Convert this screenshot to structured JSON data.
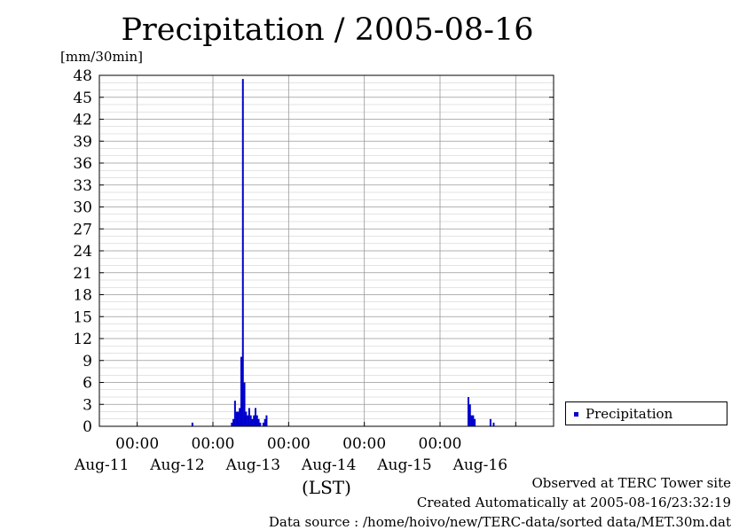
{
  "chart_data": {
    "type": "bar",
    "title": "Precipitation / 2005-08-16",
    "ylabel": "[mm/30min]",
    "xlabel": "(LST)",
    "ylim": [
      0,
      48
    ],
    "yticks": [
      "0",
      "3",
      "6",
      "9",
      "12",
      "15",
      "18",
      "21",
      "24",
      "27",
      "30",
      "33",
      "36",
      "39",
      "42",
      "45",
      "48"
    ],
    "grid": true,
    "xlim_hours": [
      0,
      144
    ],
    "xticks": [
      {
        "time": "00:00",
        "date": "Aug-11"
      },
      {
        "time": "00:00",
        "date": "Aug-12"
      },
      {
        "time": "00:00",
        "date": "Aug-13"
      },
      {
        "time": "00:00",
        "date": "Aug-14"
      },
      {
        "time": "00:00",
        "date": "Aug-15"
      },
      {
        "time": "",
        "date": "Aug-16"
      }
    ],
    "legend": {
      "position": "right",
      "label": "Precipitation"
    },
    "series": [
      {
        "name": "Precipitation",
        "color": "#0000cc",
        "points": [
          {
            "t": 29.5,
            "v": 0.5
          },
          {
            "t": 42.0,
            "v": 0.5
          },
          {
            "t": 42.5,
            "v": 1.0
          },
          {
            "t": 43.0,
            "v": 3.5
          },
          {
            "t": 43.5,
            "v": 2.0
          },
          {
            "t": 44.0,
            "v": 2.0
          },
          {
            "t": 44.5,
            "v": 2.5
          },
          {
            "t": 45.0,
            "v": 9.5
          },
          {
            "t": 45.5,
            "v": 47.5
          },
          {
            "t": 46.0,
            "v": 6.0
          },
          {
            "t": 46.5,
            "v": 2.0
          },
          {
            "t": 47.0,
            "v": 1.5
          },
          {
            "t": 47.5,
            "v": 2.5
          },
          {
            "t": 48.0,
            "v": 1.5
          },
          {
            "t": 48.5,
            "v": 1.0
          },
          {
            "t": 49.0,
            "v": 1.5
          },
          {
            "t": 49.5,
            "v": 2.5
          },
          {
            "t": 50.0,
            "v": 1.5
          },
          {
            "t": 50.5,
            "v": 1.0
          },
          {
            "t": 51.0,
            "v": 0.5
          },
          {
            "t": 52.0,
            "v": 0.5
          },
          {
            "t": 52.5,
            "v": 1.0
          },
          {
            "t": 53.0,
            "v": 1.5
          },
          {
            "t": 117.0,
            "v": 4.0
          },
          {
            "t": 117.5,
            "v": 3.0
          },
          {
            "t": 118.0,
            "v": 1.5
          },
          {
            "t": 118.5,
            "v": 1.5
          },
          {
            "t": 119.0,
            "v": 1.0
          },
          {
            "t": 124.0,
            "v": 1.0
          },
          {
            "t": 125.0,
            "v": 0.5
          }
        ]
      }
    ]
  },
  "footer": {
    "observed": "Observed at TERC Tower site",
    "created": "Created Automatically at 2005-08-16/23:32:19",
    "source": "Data source : /home/hoivo/new/TERC-data/sorted data/MET.30m.dat"
  }
}
